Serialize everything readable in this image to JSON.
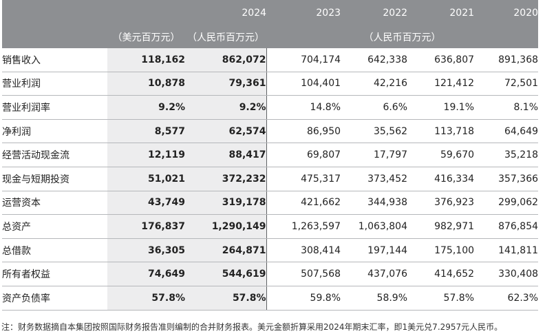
{
  "chart_data": {
    "type": "table",
    "columns": [
      {
        "year": "2024",
        "unit": "（美元百万元）"
      },
      {
        "year": "2024",
        "unit": "（人民币百万元）"
      },
      {
        "year": "2023",
        "unit": "（人民币百万元）"
      },
      {
        "year": "2022",
        "unit": "（人民币百万元）"
      },
      {
        "year": "2021",
        "unit": "（人民币百万元）"
      },
      {
        "year": "2020",
        "unit": "（人民币百万元）"
      }
    ],
    "header": {
      "year_2024": "2024",
      "years_hist": [
        "2023",
        "2022",
        "2021",
        "2020"
      ],
      "unit_usd": "（美元百万元）",
      "unit_rmb": "（人民币百万元）",
      "unit_hist": "（人民币百万元）"
    },
    "rows": [
      {
        "label": "销售收入",
        "values": [
          "118,162",
          "862,072",
          "704,174",
          "642,338",
          "636,807",
          "891,368"
        ]
      },
      {
        "label": "营业利润",
        "values": [
          "10,878",
          "79,361",
          "104,401",
          "42,216",
          "121,412",
          "72,501"
        ]
      },
      {
        "label": "营业利润率",
        "values": [
          "9.2%",
          "9.2%",
          "14.8%",
          "6.6%",
          "19.1%",
          "8.1%"
        ]
      },
      {
        "label": "净利润",
        "values": [
          "8,577",
          "62,574",
          "86,950",
          "35,562",
          "113,718",
          "64,649"
        ]
      },
      {
        "label": "经营活动现金流",
        "values": [
          "12,119",
          "88,417",
          "69,807",
          "17,797",
          "59,670",
          "35,218"
        ]
      },
      {
        "label": "现金与短期投资",
        "values": [
          "51,021",
          "372,232",
          "475,317",
          "373,452",
          "416,334",
          "357,366"
        ]
      },
      {
        "label": "运营资本",
        "values": [
          "43,749",
          "319,178",
          "421,662",
          "344,938",
          "376,923",
          "299,062"
        ]
      },
      {
        "label": "总资产",
        "values": [
          "176,837",
          "1,290,149",
          "1,263,597",
          "1,063,804",
          "982,971",
          "876,854"
        ]
      },
      {
        "label": "总借款",
        "values": [
          "36,305",
          "264,871",
          "308,414",
          "197,144",
          "175,100",
          "141,811"
        ]
      },
      {
        "label": "所有者权益",
        "values": [
          "74,649",
          "544,619",
          "507,568",
          "437,076",
          "414,652",
          "330,408"
        ]
      },
      {
        "label": "资产负债率",
        "values": [
          "57.8%",
          "57.8%",
          "59.8%",
          "58.9%",
          "57.8%",
          "62.3%"
        ]
      }
    ]
  },
  "note": "注：财务数据摘自本集团按照国际财务报告准则编制的合并财务报表。美元金额折算采用2024年期末汇率，即1美元兑7.2957元人民币。",
  "colors": {
    "header_bg": "#8d8f92",
    "header_2024_bg": "#7b7d80",
    "highlight_bg": "#ededee",
    "row_divider": "#b5b7ba"
  }
}
